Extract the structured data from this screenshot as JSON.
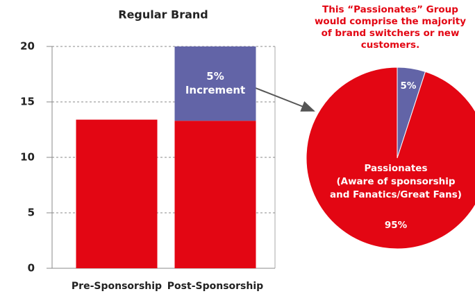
{
  "chart_data": [
    {
      "type": "bar",
      "title": "Regular Brand",
      "categories": [
        "Pre-Sponsorship",
        "Post-Sponsorship"
      ],
      "series": [
        {
          "color": "#e30613",
          "values": [
            13.4,
            13.3
          ]
        },
        {
          "color": "#6264a7",
          "values": [
            null,
            6.7
          ]
        }
      ],
      "stacked": true,
      "annotation": [
        "5%",
        "Increment"
      ],
      "ylim": [
        0,
        20
      ],
      "yticks": [
        0,
        5,
        10,
        15,
        20
      ],
      "grid": true
    },
    {
      "type": "pie",
      "annotation": [
        "This “Passionates” Group",
        "would comprise the majority",
        "of brand switchers or new",
        "customers."
      ],
      "labels": [
        null,
        [
          "Passionates",
          "(Aware of sponsorship",
          "and Fanatics/Great Fans)"
        ]
      ],
      "values": [
        5,
        95
      ],
      "value_labels": [
        "5%",
        "95%"
      ],
      "colors": [
        "#6264a7",
        "#e30613"
      ]
    }
  ]
}
